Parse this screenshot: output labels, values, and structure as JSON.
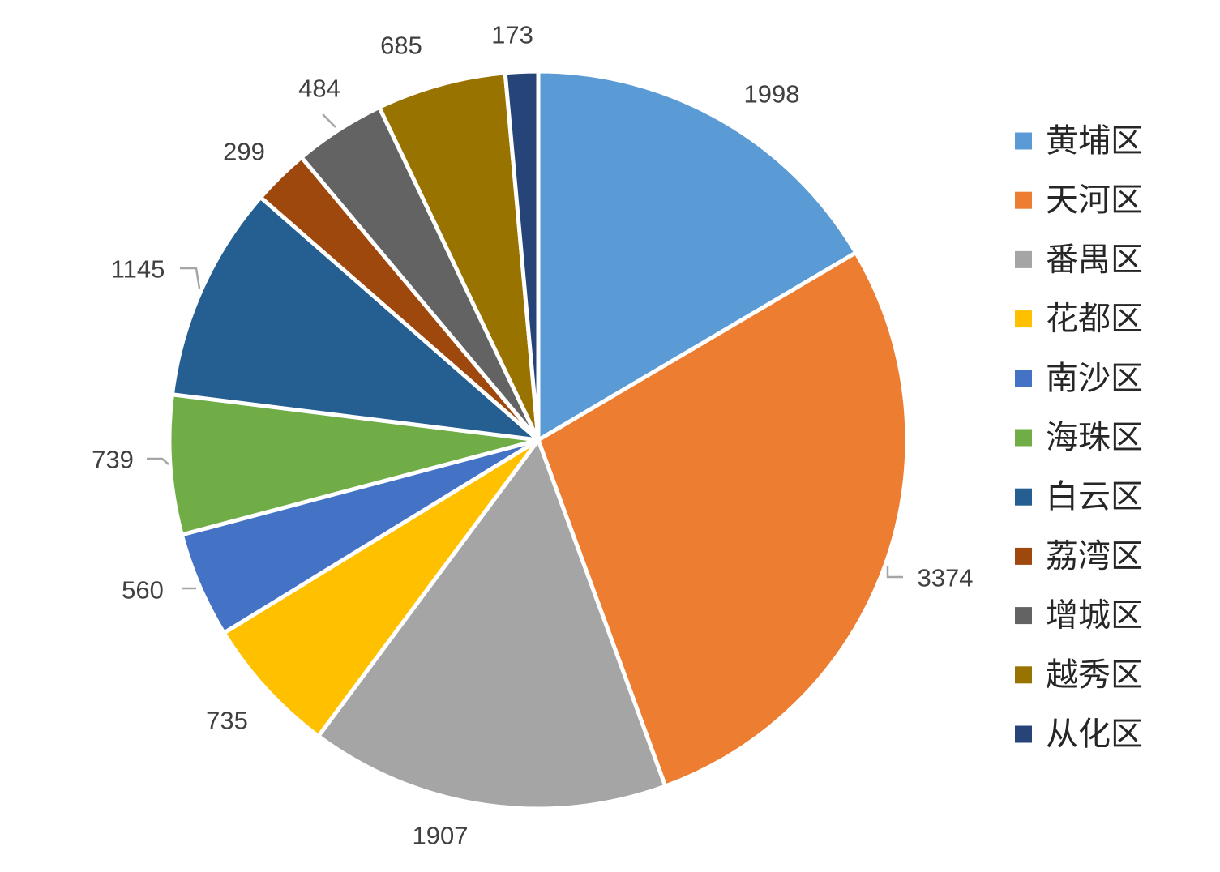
{
  "chart_data": {
    "type": "pie",
    "title": "",
    "start_angle_deg": 0,
    "direction": "clockwise",
    "legend_position": "right",
    "categories": [
      "黄埔区",
      "天河区",
      "番禺区",
      "花都区",
      "南沙区",
      "海珠区",
      "白云区",
      "荔湾区",
      "增城区",
      "越秀区",
      "从化区"
    ],
    "values": [
      1998,
      3374,
      1907,
      735,
      560,
      739,
      1145,
      299,
      484,
      685,
      173
    ],
    "colors": [
      "#5B9BD5",
      "#ED7D31",
      "#A5A5A5",
      "#FFC000",
      "#4472C4",
      "#70AD47",
      "#255E91",
      "#9E480E",
      "#636363",
      "#997300",
      "#264478"
    ],
    "slice_border_color": "#ffffff",
    "data_labels": [
      "1998",
      "3374",
      "1907",
      "735",
      "560",
      "739",
      "1145",
      "299",
      "484",
      "685",
      "173"
    ]
  }
}
